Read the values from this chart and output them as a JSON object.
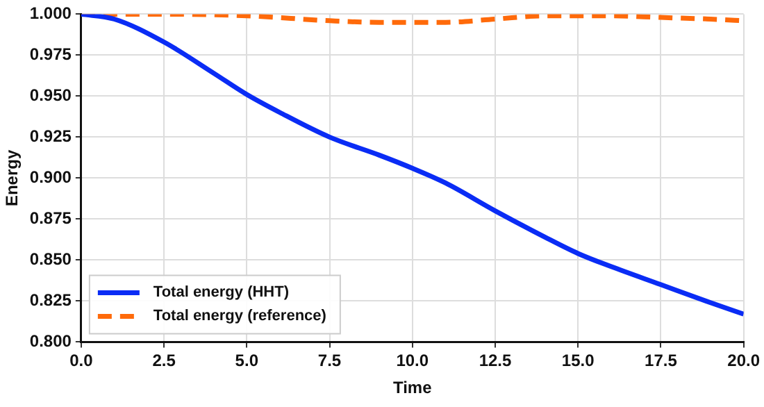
{
  "chart_data": {
    "type": "line",
    "xlabel": "Time",
    "ylabel": "Energy",
    "xlim": [
      0,
      20
    ],
    "ylim": [
      0.8,
      1.0
    ],
    "xticks": [
      {
        "value": 0,
        "label": "0.0"
      },
      2.5,
      {
        "value": 5,
        "label": "5.0"
      },
      7.5,
      {
        "value": 10,
        "label": "10.0"
      },
      12.5,
      {
        "value": 15,
        "label": "15.0"
      },
      17.5,
      {
        "value": 20,
        "label": "20.0"
      }
    ],
    "yticks": [
      {
        "value": 0.8,
        "label": "0.800"
      },
      0.825,
      {
        "value": 0.85,
        "label": "0.850"
      },
      0.875,
      {
        "value": 0.9,
        "label": "0.900"
      },
      0.925,
      {
        "value": 0.95,
        "label": "0.950"
      },
      0.975,
      {
        "value": 1.0,
        "label": "1.000"
      }
    ],
    "grid": true,
    "legend": "bottom left",
    "series": [
      {
        "name": "Total energy (HHT)",
        "color": "#0a2cf5",
        "line_style": "solid",
        "x": [
          0,
          1,
          2.5,
          4,
          5,
          6,
          7.5,
          9,
          10,
          11,
          12.5,
          14,
          15,
          16,
          17.5,
          19,
          20
        ],
        "values": [
          1.0,
          0.997,
          0.983,
          0.964,
          0.951,
          0.94,
          0.925,
          0.914,
          0.906,
          0.897,
          0.88,
          0.864,
          0.854,
          0.846,
          0.835,
          0.824,
          0.817
        ]
      },
      {
        "name": "Total energy (reference)",
        "color": "#ff6a0a",
        "line_style": "dashed",
        "x": [
          0,
          2.5,
          5,
          7.5,
          9,
          10,
          11,
          12.5,
          14,
          15,
          16,
          17.5,
          19,
          20
        ],
        "values": [
          1.0,
          1.0,
          0.999,
          0.996,
          0.995,
          0.995,
          0.995,
          0.997,
          0.999,
          0.999,
          0.999,
          0.998,
          0.997,
          0.996
        ]
      }
    ]
  }
}
